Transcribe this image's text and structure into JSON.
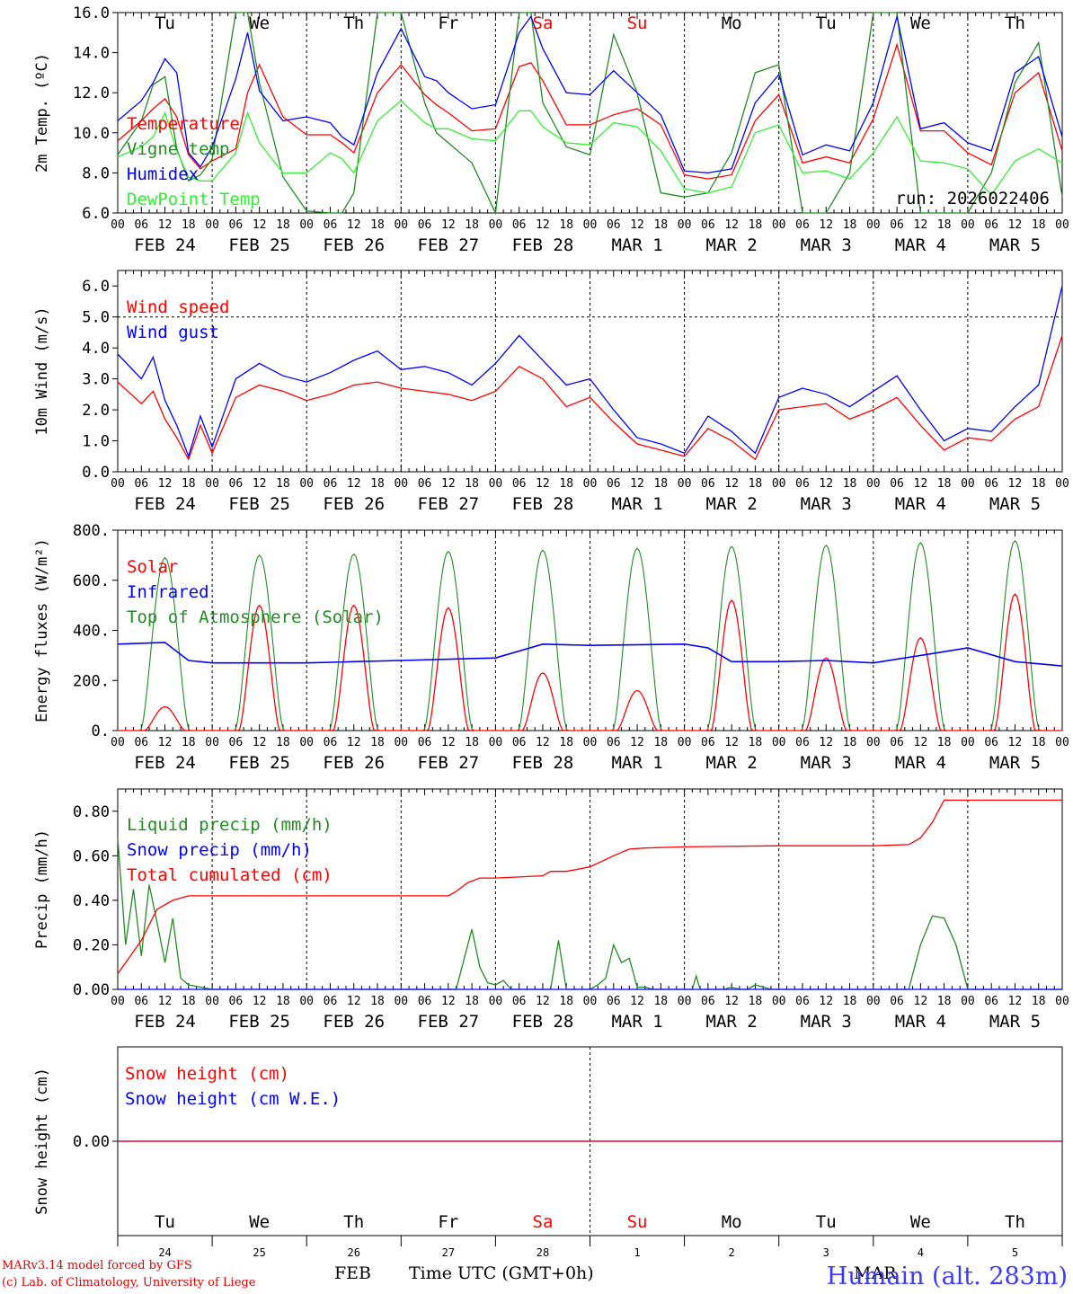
{
  "days": [
    "Tu",
    "We",
    "Th",
    "Fr",
    "Sa",
    "Su",
    "Mo",
    "Tu",
    "We",
    "Th"
  ],
  "weekend_days": [
    "Sa",
    "Su"
  ],
  "date_labels": [
    "FEB 24",
    "FEB 25",
    "FEB 26",
    "FEB 27",
    "FEB 28",
    "MAR  1",
    "MAR  2",
    "MAR  3",
    "MAR  4",
    "MAR  5"
  ],
  "hour_ticks": [
    "00",
    "06",
    "12",
    "18"
  ],
  "last_hour_tick": "00",
  "bottom_day_numbers": [
    "24",
    "25",
    "26",
    "27",
    "28",
    "1",
    "2",
    "3",
    "4",
    "5"
  ],
  "colors": {
    "red": "#ff0000",
    "darkgreen": "#228b22",
    "blue": "#0000ff",
    "lightgreen": "#33ee33"
  },
  "chart_data": [
    {
      "id": "temperature",
      "type": "line",
      "ylabel": "2m Temp. (ºC)",
      "ylim": [
        6,
        16
      ],
      "yticks": [
        "6.0",
        "8.0",
        "10.0",
        "12.0",
        "14.0",
        "16.0"
      ],
      "run_label": "run: 2026022406",
      "x_hours": [
        0,
        6,
        9,
        12,
        15,
        18,
        21,
        24,
        30,
        33,
        36,
        42,
        48,
        54,
        57,
        60,
        66,
        72,
        78,
        81,
        84,
        90,
        96,
        102,
        105,
        108,
        114,
        120,
        126,
        132,
        138,
        144,
        150,
        156,
        162,
        168,
        174,
        180,
        186,
        192,
        198,
        204,
        210,
        216,
        222,
        228,
        234,
        240
      ],
      "series": [
        {
          "name": "Temperature",
          "color": "#ff0000",
          "values": [
            9.6,
            10.6,
            11.2,
            11.7,
            10.8,
            8.9,
            8.2,
            8.6,
            9.2,
            12.0,
            13.4,
            10.8,
            9.9,
            9.9,
            9.5,
            9.0,
            12.0,
            13.4,
            11.9,
            11.4,
            11.0,
            10.1,
            10.2,
            13.3,
            13.5,
            12.6,
            10.4,
            10.4,
            10.9,
            11.2,
            10.4,
            7.9,
            7.7,
            7.9,
            10.6,
            11.9,
            8.5,
            8.8,
            8.5,
            10.7,
            14.4,
            10.1,
            10.1,
            9.0,
            8.4,
            12.0,
            13.0,
            9.1
          ]
        },
        {
          "name": "Vigne temp",
          "color": "#228b22",
          "values": [
            8.9,
            10.6,
            12.4,
            12.8,
            9.2,
            7.6,
            7.9,
            8.7,
            16.0,
            16.0,
            12.5,
            7.8,
            6.1,
            6.0,
            5.5,
            7.0,
            16.0,
            16.0,
            11.5,
            10.0,
            9.5,
            8.5,
            4.5,
            16.0,
            16.0,
            11.5,
            9.3,
            8.9,
            14.9,
            12.0,
            7.0,
            6.8,
            7.0,
            9.0,
            13.0,
            13.4,
            2.0,
            3.0,
            8.0,
            16.0,
            16.0,
            6.0,
            4.0,
            6.0,
            8.0,
            12.5,
            14.5,
            6.8
          ]
        },
        {
          "name": "Humidex",
          "color": "#0000ff",
          "values": [
            10.6,
            11.6,
            12.5,
            13.7,
            13.0,
            9.0,
            8.3,
            9.3,
            12.7,
            15.0,
            12.1,
            10.6,
            10.8,
            10.5,
            9.8,
            9.4,
            13.0,
            15.2,
            12.8,
            12.6,
            12.0,
            11.2,
            11.4,
            15.0,
            15.8,
            14.2,
            12.0,
            11.9,
            13.1,
            12.0,
            10.9,
            8.1,
            8.0,
            8.2,
            11.5,
            12.9,
            8.9,
            9.4,
            9.1,
            11.5,
            15.8,
            10.2,
            10.5,
            9.5,
            9.1,
            13.0,
            13.8,
            9.8
          ]
        },
        {
          "name": "DewPoint Temp",
          "color": "#33ee33",
          "values": [
            8.8,
            9.3,
            9.8,
            11.0,
            9.1,
            7.8,
            7.6,
            7.6,
            9.0,
            11.0,
            9.5,
            8.0,
            8.0,
            9.0,
            8.7,
            8.0,
            10.6,
            11.6,
            10.5,
            10.2,
            10.2,
            9.7,
            9.6,
            11.1,
            11.1,
            10.3,
            9.5,
            9.4,
            10.5,
            10.3,
            9.1,
            7.2,
            7.0,
            7.3,
            10.0,
            10.4,
            8.0,
            8.1,
            7.7,
            9.0,
            10.8,
            8.6,
            8.5,
            8.2,
            6.9,
            8.6,
            9.2,
            8.5
          ]
        }
      ]
    },
    {
      "id": "wind",
      "type": "line",
      "ylabel": "10m Wind (m/s)",
      "ylim": [
        0,
        6.5
      ],
      "yticks": [
        "0.0",
        "1.0",
        "2.0",
        "3.0",
        "4.0",
        "5.0",
        "6.0"
      ],
      "reference_line": 5.0,
      "x_hours": [
        0,
        6,
        9,
        12,
        15,
        18,
        21,
        24,
        30,
        36,
        42,
        48,
        54,
        60,
        66,
        72,
        78,
        84,
        90,
        96,
        102,
        108,
        114,
        120,
        126,
        132,
        138,
        144,
        150,
        156,
        162,
        168,
        174,
        180,
        186,
        192,
        198,
        204,
        210,
        216,
        222,
        228,
        234,
        240
      ],
      "series": [
        {
          "name": "Wind speed",
          "color": "#ff0000",
          "values": [
            2.9,
            2.2,
            2.6,
            1.7,
            1.1,
            0.4,
            1.5,
            0.6,
            2.4,
            2.8,
            2.6,
            2.3,
            2.5,
            2.8,
            2.9,
            2.7,
            2.6,
            2.5,
            2.3,
            2.6,
            3.4,
            3.0,
            2.1,
            2.4,
            1.6,
            0.9,
            0.7,
            0.5,
            1.4,
            1.0,
            0.4,
            2.0,
            2.1,
            2.2,
            1.7,
            2.0,
            2.4,
            1.5,
            0.7,
            1.1,
            1.0,
            1.7,
            2.1,
            4.4
          ]
        },
        {
          "name": "Wind gust",
          "color": "#0000ff",
          "values": [
            3.8,
            3.0,
            3.7,
            2.3,
            1.5,
            0.5,
            1.8,
            0.8,
            3.0,
            3.5,
            3.1,
            2.9,
            3.2,
            3.6,
            3.9,
            3.3,
            3.4,
            3.2,
            2.8,
            3.5,
            4.4,
            3.6,
            2.8,
            3.0,
            2.0,
            1.1,
            0.9,
            0.6,
            1.8,
            1.3,
            0.6,
            2.4,
            2.7,
            2.5,
            2.1,
            2.6,
            3.1,
            2.0,
            1.0,
            1.4,
            1.3,
            2.1,
            2.8,
            6.0
          ]
        }
      ]
    },
    {
      "id": "energy",
      "type": "line",
      "ylabel": "Energy fluxes (W/m²)",
      "ylim": [
        0,
        800
      ],
      "yticks": [
        "0.",
        "200.",
        "400.",
        "600.",
        "800."
      ],
      "series": [
        {
          "name": "Solar",
          "color": "#ff0000",
          "day_peaks": [
            95,
            500,
            500,
            490,
            230,
            160,
            520,
            290,
            370,
            545
          ]
        },
        {
          "name": "Infrared",
          "color": "#0000ff",
          "x_hours": [
            0,
            12,
            18,
            24,
            48,
            60,
            72,
            96,
            108,
            120,
            144,
            150,
            156,
            168,
            180,
            192,
            204,
            216,
            228,
            240
          ],
          "values": [
            345,
            352,
            280,
            270,
            270,
            275,
            280,
            290,
            345,
            340,
            345,
            330,
            275,
            275,
            280,
            270,
            300,
            330,
            275,
            258
          ]
        },
        {
          "name": "Top of Atmosphere (Solar)",
          "color": "#228b22",
          "day_peaks": [
            690,
            700,
            705,
            715,
            720,
            728,
            735,
            740,
            750,
            758
          ]
        }
      ]
    },
    {
      "id": "precip",
      "type": "line",
      "ylabel": "Precip (mm/h)",
      "ylim": [
        0,
        0.9
      ],
      "yticks": [
        "0.00",
        "0.20",
        "0.40",
        "0.60",
        "0.80"
      ],
      "series": [
        {
          "name": "Liquid precip (mm/h)",
          "color": "#228b22",
          "x_hours": [
            0,
            2,
            4,
            6,
            8,
            10,
            12,
            14,
            16,
            18,
            24,
            86,
            90,
            92,
            94,
            96,
            98,
            100,
            110,
            112,
            114,
            120,
            122,
            124,
            126,
            128,
            130,
            132,
            134,
            136,
            146,
            147,
            148,
            154,
            156,
            158,
            160,
            162,
            166,
            168,
            201,
            204,
            207,
            210,
            213,
            216,
            222,
            240
          ],
          "values": [
            0.68,
            0.2,
            0.45,
            0.15,
            0.47,
            0.3,
            0.12,
            0.32,
            0.05,
            0.02,
            0,
            0,
            0.27,
            0.1,
            0.03,
            0.02,
            0.04,
            0,
            0,
            0.22,
            0,
            0,
            0.02,
            0.05,
            0.2,
            0.12,
            0.14,
            0.01,
            0.01,
            0,
            0,
            0.06,
            0,
            0,
            0.01,
            0,
            0,
            0.02,
            0,
            0,
            0,
            0.2,
            0.33,
            0.32,
            0.2,
            0,
            0,
            0
          ]
        },
        {
          "name": "Snow precip (mm/h)",
          "color": "#0000ff",
          "x_hours": [
            0,
            240
          ],
          "values": [
            0,
            0
          ]
        },
        {
          "name": "Total cumulated (cm)",
          "color": "#ff0000",
          "x_hours": [
            0,
            6,
            10,
            14,
            18,
            24,
            60,
            84,
            86,
            89,
            92,
            96,
            108,
            110,
            114,
            120,
            126,
            130,
            134,
            144,
            168,
            192,
            201,
            204,
            207,
            210,
            240
          ],
          "values": [
            0.07,
            0.22,
            0.36,
            0.4,
            0.42,
            0.42,
            0.42,
            0.42,
            0.44,
            0.48,
            0.5,
            0.5,
            0.51,
            0.53,
            0.53,
            0.55,
            0.6,
            0.63,
            0.635,
            0.64,
            0.645,
            0.645,
            0.65,
            0.68,
            0.75,
            0.85,
            0.85
          ]
        }
      ]
    },
    {
      "id": "snow",
      "type": "line",
      "ylabel": "Snow height (cm)",
      "yticks": [
        "0.00"
      ],
      "series": [
        {
          "name": "Snow height (cm)",
          "color": "#ff0000",
          "values": [
            0,
            0
          ]
        },
        {
          "name": "Snow height (cm W.E.)",
          "color": "#0000ff",
          "values": [
            0,
            0
          ]
        }
      ]
    }
  ],
  "footer": {
    "model_line": "MARv3.14 model forced by GFS",
    "credit_line": "(c) Lab. of Climatology, University of Liege",
    "xaxis_title": "Time UTC (GMT+0h)",
    "feb": "FEB",
    "mar": "MAR",
    "station": "Humain (alt. 283m)"
  }
}
